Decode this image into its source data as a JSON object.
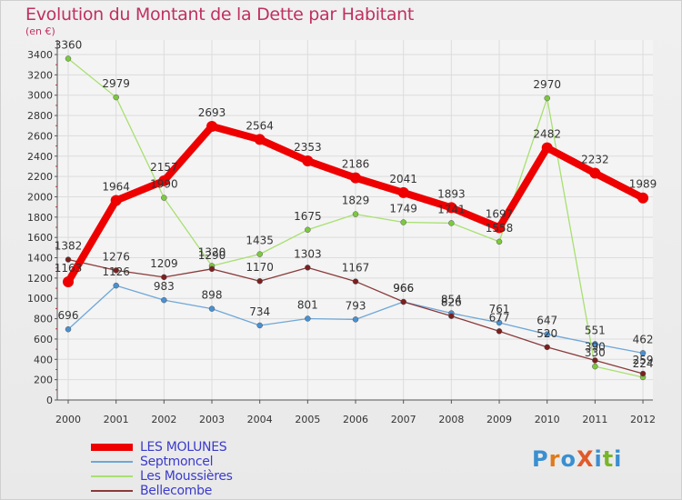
{
  "title": "Evolution du Montant de la Dette par Habitant",
  "unit_label": "(en €)",
  "logo": {
    "text": "ProXiti",
    "colors": [
      "#3a8fd0",
      "#e07b1a",
      "#3a8fd0",
      "#e05a2a",
      "#3a8fd0",
      "#7ab52a",
      "#3a8fd0"
    ]
  },
  "chart_data": {
    "type": "line",
    "x": [
      "2000",
      "2001",
      "2002",
      "2003",
      "2004",
      "2005",
      "2006",
      "2007",
      "2008",
      "2009",
      "2010",
      "2011",
      "2012"
    ],
    "ylim": [
      0,
      3500
    ],
    "yticks": [
      0,
      200,
      400,
      600,
      800,
      1000,
      1200,
      1400,
      1600,
      1800,
      2000,
      2200,
      2400,
      2600,
      2800,
      3000,
      3200,
      3400
    ],
    "grid": true,
    "legend_position": "bottom-left",
    "series": [
      {
        "name": "LES MOLUNES",
        "color": "#ee0000",
        "marker": "#ee0000",
        "width": 8,
        "values": [
          1163,
          1964,
          2157,
          2693,
          2564,
          2353,
          2186,
          2041,
          1893,
          1697,
          2482,
          2232,
          1989
        ]
      },
      {
        "name": "Septmoncel",
        "color": "#6fa7d8",
        "marker": "#4a90d0",
        "width": 1.3,
        "values": [
          696,
          1126,
          983,
          898,
          734,
          801,
          793,
          966,
          854,
          761,
          647,
          551,
          462
        ]
      },
      {
        "name": "Les Moussières",
        "color": "#a8e070",
        "marker": "#7cc840",
        "width": 1.3,
        "values": [
          3360,
          2979,
          1990,
          1320,
          1435,
          1675,
          1829,
          1749,
          1741,
          1558,
          2970,
          330,
          224
        ]
      },
      {
        "name": "Bellecombe",
        "color": "#8a3a3a",
        "marker": "#7a2020",
        "width": 1.3,
        "values": [
          1382,
          1276,
          1209,
          1290,
          1170,
          1303,
          1167,
          966,
          826,
          677,
          520,
          390,
          259
        ]
      }
    ]
  }
}
